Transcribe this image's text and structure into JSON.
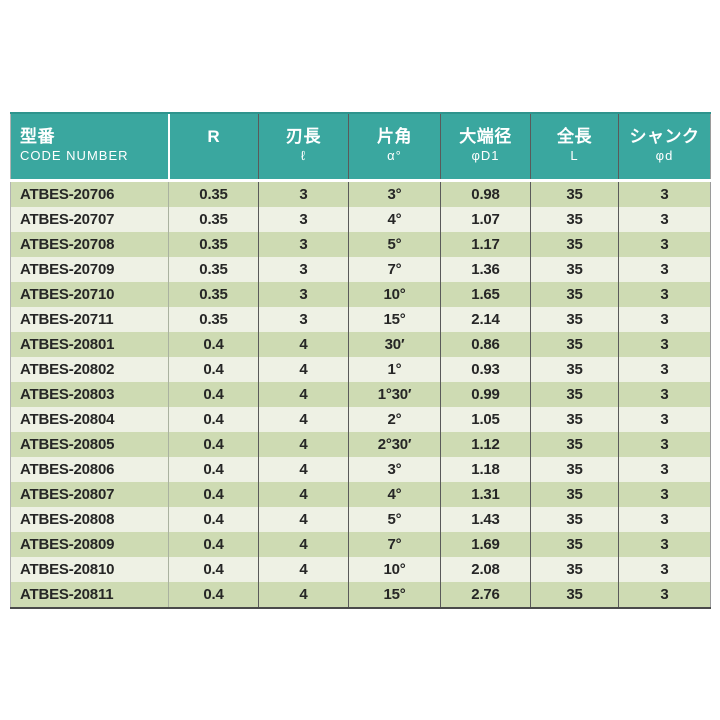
{
  "colors": {
    "header_bg": "#3aa79f",
    "header_text": "#ffffff",
    "row_dark": "#cedbb3",
    "row_light": "#eef1e4",
    "body_text": "#262626",
    "grid_line": "#5a5a5a",
    "light_line": "#aab2a0",
    "table_bottom": "#4a4a4a"
  },
  "table": {
    "headers": [
      {
        "line1": "型番",
        "line2": "CODE NUMBER"
      },
      {
        "line1": "R",
        "line2": ""
      },
      {
        "line1": "刃長",
        "line2": "ℓ"
      },
      {
        "line1": "片角",
        "line2": "α°"
      },
      {
        "line1": "大端径",
        "line2": "φD1"
      },
      {
        "line1": "全長",
        "line2": "L"
      },
      {
        "line1": "シャンク",
        "line2": "φd"
      }
    ],
    "rows": [
      [
        "ATBES-20706",
        "0.35",
        "3",
        "3°",
        "0.98",
        "35",
        "3"
      ],
      [
        "ATBES-20707",
        "0.35",
        "3",
        "4°",
        "1.07",
        "35",
        "3"
      ],
      [
        "ATBES-20708",
        "0.35",
        "3",
        "5°",
        "1.17",
        "35",
        "3"
      ],
      [
        "ATBES-20709",
        "0.35",
        "3",
        "7°",
        "1.36",
        "35",
        "3"
      ],
      [
        "ATBES-20710",
        "0.35",
        "3",
        "10°",
        "1.65",
        "35",
        "3"
      ],
      [
        "ATBES-20711",
        "0.35",
        "3",
        "15°",
        "2.14",
        "35",
        "3"
      ],
      [
        "ATBES-20801",
        "0.4",
        "4",
        "30′",
        "0.86",
        "35",
        "3"
      ],
      [
        "ATBES-20802",
        "0.4",
        "4",
        "1°",
        "0.93",
        "35",
        "3"
      ],
      [
        "ATBES-20803",
        "0.4",
        "4",
        "1°30′",
        "0.99",
        "35",
        "3"
      ],
      [
        "ATBES-20804",
        "0.4",
        "4",
        "2°",
        "1.05",
        "35",
        "3"
      ],
      [
        "ATBES-20805",
        "0.4",
        "4",
        "2°30′",
        "1.12",
        "35",
        "3"
      ],
      [
        "ATBES-20806",
        "0.4",
        "4",
        "3°",
        "1.18",
        "35",
        "3"
      ],
      [
        "ATBES-20807",
        "0.4",
        "4",
        "4°",
        "1.31",
        "35",
        "3"
      ],
      [
        "ATBES-20808",
        "0.4",
        "4",
        "5°",
        "1.43",
        "35",
        "3"
      ],
      [
        "ATBES-20809",
        "0.4",
        "4",
        "7°",
        "1.69",
        "35",
        "3"
      ],
      [
        "ATBES-20810",
        "0.4",
        "4",
        "10°",
        "2.08",
        "35",
        "3"
      ],
      [
        "ATBES-20811",
        "0.4",
        "4",
        "15°",
        "2.76",
        "35",
        "3"
      ]
    ]
  }
}
